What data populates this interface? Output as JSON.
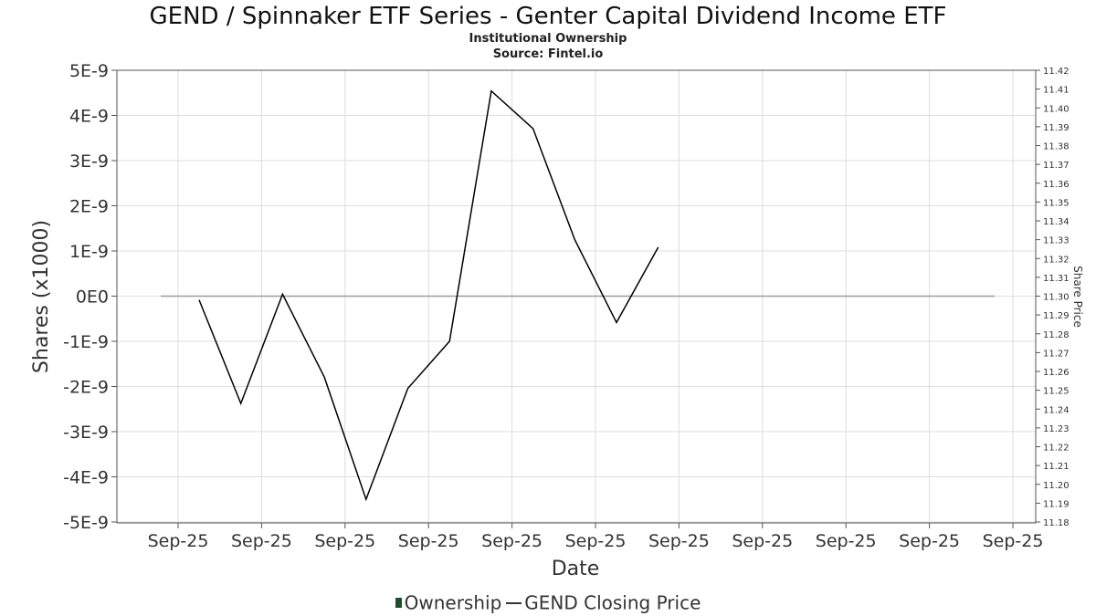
{
  "chart_data": {
    "type": "line",
    "title": "GEND / Spinnaker ETF Series - Genter Capital Dividend Income ETF",
    "subtitle": "Institutional Ownership",
    "source": "Source: Fintel.io",
    "xlabel": "Date",
    "ylabel": "Shares (x1000)",
    "y2label": "Share Price",
    "x_tick_labels": [
      "Sep-25",
      "Sep-25",
      "Sep-25",
      "Sep-25",
      "Sep-25",
      "Sep-25",
      "Sep-25",
      "Sep-25",
      "Sep-25",
      "Sep-25",
      "Sep-25"
    ],
    "y_tick_labels": [
      "5E-9",
      "4E-9",
      "3E-9",
      "2E-9",
      "1E-9",
      "0E0",
      "-1E-9",
      "-2E-9",
      "-3E-9",
      "-4E-9",
      "-5E-9"
    ],
    "y_tick_values": [
      5e-09,
      4e-09,
      3e-09,
      2e-09,
      1e-09,
      0,
      -1e-09,
      -2e-09,
      -3e-09,
      -4e-09,
      -5e-09
    ],
    "ylim": [
      -5e-09,
      5e-09
    ],
    "y2_tick_labels": [
      "11.42",
      "11.41",
      "11.40",
      "11.39",
      "11.38",
      "11.37",
      "11.36",
      "11.35",
      "11.34",
      "11.33",
      "11.32",
      "11.31",
      "11.30",
      "11.29",
      "11.28",
      "11.27",
      "11.26",
      "11.25",
      "11.24",
      "11.23",
      "11.22",
      "11.21",
      "11.20",
      "11.19",
      "11.18"
    ],
    "y2_tick_values": [
      11.42,
      11.41,
      11.4,
      11.39,
      11.38,
      11.37,
      11.36,
      11.35,
      11.34,
      11.33,
      11.32,
      11.31,
      11.3,
      11.29,
      11.28,
      11.27,
      11.26,
      11.25,
      11.24,
      11.23,
      11.22,
      11.21,
      11.2,
      11.19,
      11.18
    ],
    "y2lim": [
      11.18,
      11.42
    ],
    "grid": true,
    "legend_position": "bottom",
    "series": [
      {
        "name": "Ownership",
        "axis": "left",
        "color": "#1f4d2b",
        "values": [
          0,
          0
        ]
      },
      {
        "name": "GEND Closing Price",
        "axis": "right",
        "color": "#000000",
        "values": [
          11.298,
          11.243,
          11.301,
          11.257,
          11.192,
          11.251,
          11.276,
          11.409,
          11.389,
          11.33,
          11.286,
          11.326
        ]
      }
    ],
    "colors": {
      "ownership_baseline": "#999999",
      "grid": "#dddddd",
      "axis": "#555555"
    }
  },
  "legend": {
    "ownership_label": "Ownership",
    "price_label": "GEND Closing Price"
  }
}
